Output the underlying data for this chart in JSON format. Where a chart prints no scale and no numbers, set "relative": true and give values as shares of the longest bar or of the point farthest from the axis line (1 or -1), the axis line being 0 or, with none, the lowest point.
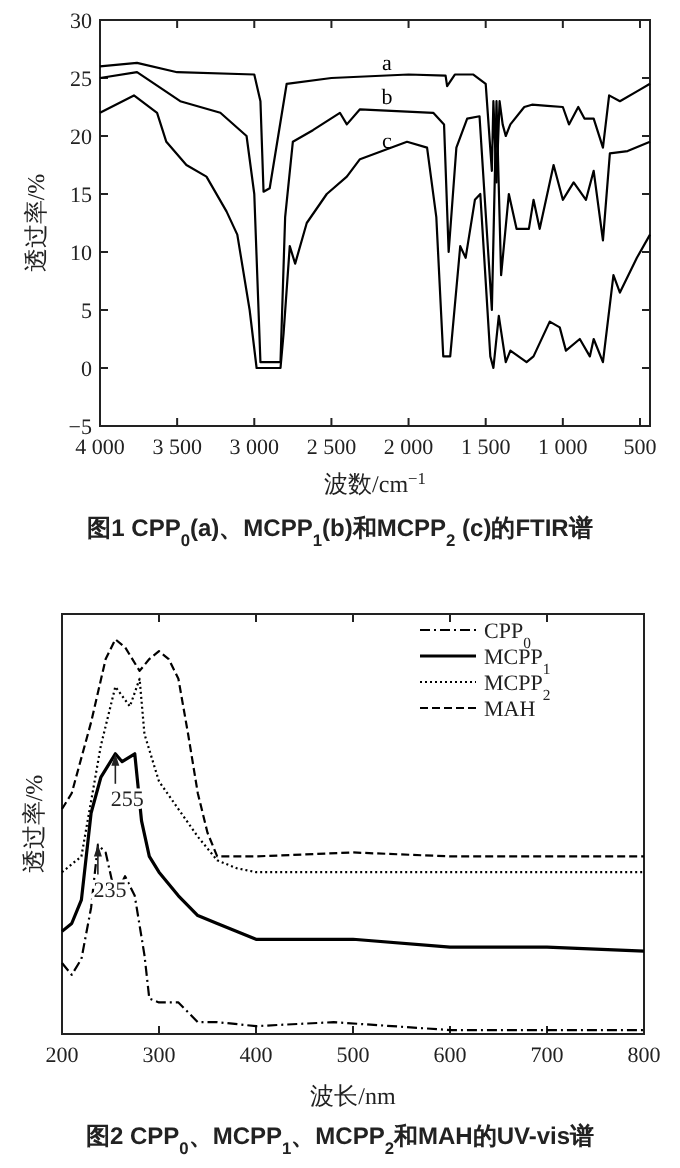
{
  "chart_data": [
    {
      "type": "line",
      "title": "图1 CPP$_{0}$(a)、MCPP$_{1}$(b)和MCPP$_{2}$ (c)的FTIR谱",
      "xlabel": "波数/cm$^{−1}$",
      "ylabel": "透过率/%",
      "xlim": [
        4000,
        435
      ],
      "ylim": [
        -5,
        30
      ],
      "xticks": [
        {
          "value": 4000,
          "label": "4 000"
        },
        {
          "value": 3500,
          "label": "3 500"
        },
        {
          "value": 3000,
          "label": "3 000"
        },
        {
          "value": 2500,
          "label": "2 500"
        },
        {
          "value": 2000,
          "label": "2 000"
        },
        {
          "value": 1500,
          "label": "1 500"
        },
        {
          "value": 1000,
          "label": "1 000"
        },
        500
      ],
      "yticks": [
        {
          "value": -5,
          "label": "−5"
        },
        0,
        5,
        10,
        15,
        20,
        25,
        30
      ],
      "series": [
        {
          "name": "a",
          "color": "#000000",
          "x": [
            4000,
            3760,
            3500,
            3000,
            2960,
            2940,
            2900,
            2790,
            2500,
            2000,
            1760,
            1750,
            1700,
            1580,
            1500,
            1460,
            1450,
            1430,
            1410,
            1390,
            1370,
            1340,
            1250,
            1200,
            1100,
            1000,
            960,
            900,
            860,
            800,
            740,
            700,
            630,
            500,
            435
          ],
          "values": [
            26,
            26.3,
            25.5,
            25.3,
            23,
            15.2,
            15.5,
            24.5,
            25,
            25.3,
            25.2,
            24.3,
            25.3,
            25.3,
            24.5,
            17,
            23,
            16,
            23,
            21,
            20,
            21,
            22.5,
            22.7,
            22.6,
            22.5,
            21,
            22.5,
            21.5,
            21.5,
            19,
            23.5,
            23,
            24,
            24.5
          ]
        },
        {
          "name": "b",
          "color": "#000000",
          "x": [
            4000,
            3760,
            3480,
            3220,
            3050,
            3000,
            2960,
            2830,
            2800,
            2750,
            2620,
            2445,
            2400,
            2315,
            1840,
            1770,
            1740,
            1690,
            1620,
            1540,
            1460,
            1430,
            1400,
            1350,
            1300,
            1220,
            1190,
            1150,
            1060,
            1000,
            930,
            850,
            800,
            740,
            695,
            580,
            435
          ],
          "values": [
            25,
            25.5,
            23,
            22,
            20,
            15,
            0.5,
            0.5,
            13,
            19.5,
            20.5,
            22,
            21,
            22.3,
            22,
            21,
            10,
            19,
            21.5,
            21.7,
            5,
            23,
            8,
            15,
            12,
            12,
            14.5,
            12,
            17.5,
            14.5,
            16,
            14.5,
            17,
            11,
            18.5,
            18.7,
            19.5
          ]
        },
        {
          "name": "c",
          "color": "#000000",
          "x": [
            4000,
            3780,
            3630,
            3570,
            3440,
            3310,
            3180,
            3110,
            3030,
            2985,
            2830,
            2810,
            2770,
            2735,
            2660,
            2530,
            2400,
            2315,
            2010,
            1880,
            1820,
            1775,
            1730,
            1665,
            1630,
            1570,
            1535,
            1470,
            1450,
            1415,
            1370,
            1340,
            1235,
            1190,
            1085,
            1020,
            980,
            890,
            825,
            800,
            740,
            672,
            630,
            520,
            435
          ],
          "values": [
            22,
            23.5,
            22,
            19.5,
            17.5,
            16.5,
            13.5,
            11.5,
            5,
            0,
            0,
            3,
            10.5,
            9,
            12.5,
            15,
            16.5,
            18,
            19.5,
            19,
            13,
            1,
            1,
            10.5,
            9.5,
            14.5,
            15,
            1,
            0,
            4.5,
            0.5,
            1.5,
            0.5,
            1,
            4,
            3.5,
            1.5,
            2.5,
            1,
            2.5,
            0.5,
            8,
            6.5,
            9.5,
            11.5
          ]
        }
      ]
    },
    {
      "type": "line",
      "title": "图2 CPP$_{0}$、MCPP$_{1}$、MCPP$_{2}$和MAH的UV-vis谱",
      "xlabel": "波长/nm",
      "ylabel": "透过率/%",
      "relative": true,
      "xlim": [
        200,
        800
      ],
      "xticks": [
        200,
        300,
        400,
        500,
        600,
        700,
        800
      ],
      "legend": "top right",
      "series": [
        {
          "name": "CPP$_{0}$",
          "color": "#000000",
          "line_style": "dashdot",
          "x": [
            200,
            210,
            220,
            230,
            237,
            245,
            255,
            265,
            275,
            285,
            290,
            300,
            320,
            340,
            360,
            400,
            480,
            600,
            800
          ],
          "values": [
            0.18,
            0.15,
            0.19,
            0.32,
            0.48,
            0.46,
            0.35,
            0.4,
            0.35,
            0.2,
            0.09,
            0.08,
            0.08,
            0.03,
            0.03,
            0.02,
            0.03,
            0.01,
            0.01
          ]
        },
        {
          "name": "MCPP$_{1}$",
          "color": "#000000",
          "line_style": "solid",
          "x": [
            200,
            210,
            220,
            230,
            240,
            255,
            262,
            275,
            282,
            290,
            300,
            320,
            340,
            360,
            400,
            500,
            600,
            700,
            800
          ],
          "values": [
            0.26,
            0.28,
            0.34,
            0.56,
            0.65,
            0.71,
            0.69,
            0.71,
            0.54,
            0.45,
            0.41,
            0.35,
            0.3,
            0.28,
            0.24,
            0.24,
            0.22,
            0.22,
            0.21
          ]
        },
        {
          "name": "MCPP$_{2}$",
          "color": "#000000",
          "line_style": "dotted",
          "x": [
            200,
            220,
            240,
            255,
            270,
            280,
            285,
            300,
            320,
            340,
            360,
            380,
            400,
            800
          ],
          "values": [
            0.41,
            0.45,
            0.73,
            0.88,
            0.83,
            0.9,
            0.76,
            0.64,
            0.57,
            0.5,
            0.44,
            0.42,
            0.41,
            0.41
          ]
        },
        {
          "name": "MAH",
          "color": "#000000",
          "line_style": "dashed",
          "x": [
            200,
            210,
            230,
            245,
            255,
            265,
            280,
            290,
            300,
            310,
            320,
            330,
            340,
            350,
            360,
            400,
            500,
            600,
            800
          ],
          "values": [
            0.57,
            0.61,
            0.79,
            0.95,
            1,
            0.98,
            0.92,
            0.95,
            0.97,
            0.95,
            0.9,
            0.76,
            0.61,
            0.51,
            0.45,
            0.45,
            0.46,
            0.45,
            0.45
          ]
        }
      ],
      "annotations": [
        {
          "text": "255",
          "x": 255,
          "y": 0.71
        },
        {
          "text": "235",
          "x": 237,
          "y": 0.48
        }
      ]
    }
  ]
}
